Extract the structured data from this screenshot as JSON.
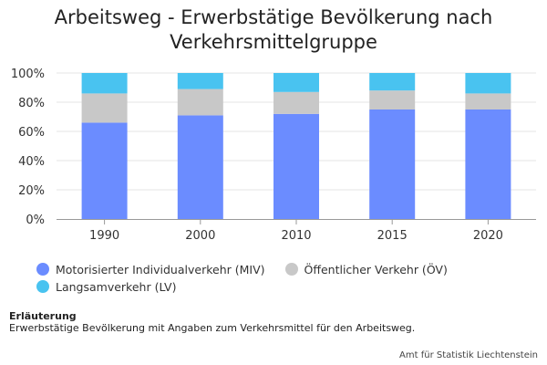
{
  "chart_data": {
    "type": "bar",
    "stacked": true,
    "title": "Arbeitsweg - Erwerbstätige Bevölkerung nach Verkehrsmittelgruppe",
    "categories": [
      "1990",
      "2000",
      "2010",
      "2015",
      "2020"
    ],
    "series": [
      {
        "name": "Motorisierter Individualverkehr (MIV)",
        "color": "#6b8cff",
        "values": [
          66,
          71,
          72,
          75,
          75
        ]
      },
      {
        "name": "Öffentlicher Verkehr (ÖV)",
        "color": "#c8c8c8",
        "values": [
          20,
          18,
          15,
          13,
          11
        ]
      },
      {
        "name": "Langsamverkehr (LV)",
        "color": "#49c3f0",
        "values": [
          14,
          11,
          13,
          12,
          14
        ]
      }
    ],
    "yticks": [
      "0%",
      "20%",
      "40%",
      "60%",
      "80%",
      "100%"
    ],
    "ylim": [
      0,
      100
    ],
    "grid": true,
    "legend_position": "bottom-left"
  },
  "note": {
    "title": "Erläuterung",
    "text": "Erwerbstätige Bevölkerung mit Angaben zum Verkehrsmittel für den Arbeitsweg."
  },
  "source": "Amt für Statistik Liechtenstein"
}
